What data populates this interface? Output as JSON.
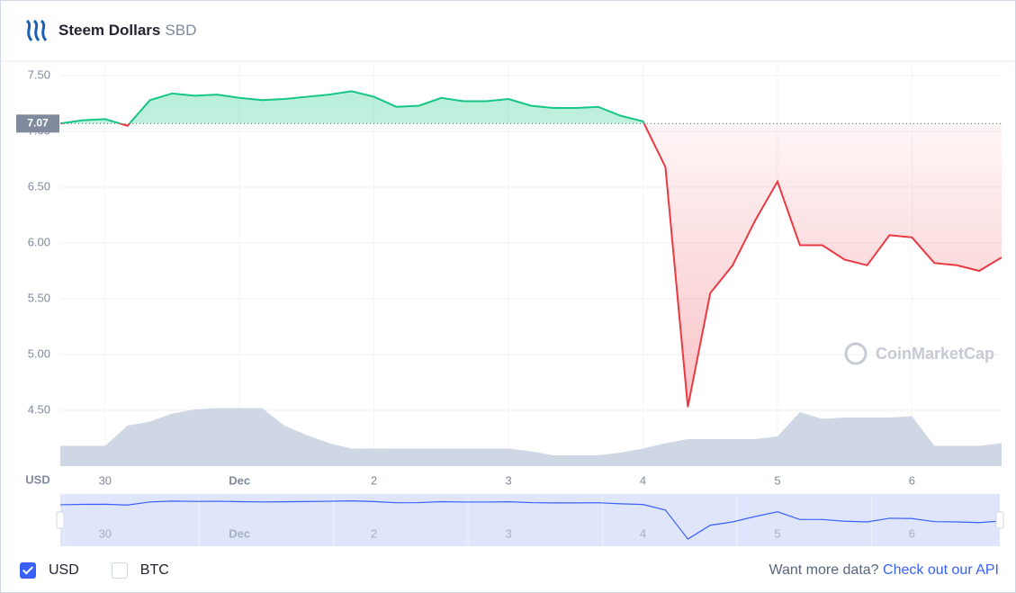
{
  "header": {
    "title": "Steem Dollars",
    "symbol": "SBD"
  },
  "chart_data": {
    "type": "line",
    "categories": [
      null,
      null,
      "30",
      null,
      null,
      null,
      null,
      null,
      "Dec",
      null,
      null,
      null,
      null,
      null,
      "2",
      null,
      null,
      null,
      null,
      null,
      "3",
      null,
      null,
      null,
      null,
      null,
      "4",
      null,
      null,
      null,
      null,
      null,
      "5",
      null,
      null,
      null,
      null,
      null,
      "6",
      null,
      null,
      null,
      null
    ],
    "series": [
      {
        "color": "#16c784",
        "below_color": "#ea3943",
        "values": [
          7.07,
          7.1,
          7.11,
          7.05,
          7.28,
          7.34,
          7.32,
          7.33,
          7.3,
          7.28,
          7.29,
          7.31,
          7.33,
          7.36,
          7.31,
          7.22,
          7.23,
          7.3,
          7.27,
          7.27,
          7.29,
          7.23,
          7.21,
          7.21,
          7.22,
          7.14,
          7.09,
          6.68,
          4.53,
          5.55,
          5.8,
          6.2,
          6.55,
          5.98,
          5.98,
          5.85,
          5.8,
          6.07,
          6.05,
          5.82,
          5.8,
          5.75,
          5.87
        ]
      }
    ],
    "volume": {
      "color": "#cfd6e4",
      "axis": "y2",
      "values": [
        15,
        15,
        15,
        30,
        33,
        39,
        42,
        43,
        43,
        43,
        30,
        23,
        17,
        13,
        13,
        13,
        13,
        13,
        13,
        13,
        13,
        11,
        8,
        8,
        8,
        10,
        13,
        17,
        20,
        20,
        20,
        20,
        22,
        40,
        35,
        36,
        36,
        36,
        37,
        15,
        15,
        15,
        17
      ]
    },
    "reference": {
      "value": 7.07,
      "label": "7.07"
    },
    "ylim": [
      4.0,
      7.6
    ],
    "yticks": [
      {
        "value": 4.5,
        "label": "4.50"
      },
      {
        "value": 5.0,
        "label": "5.00"
      },
      {
        "value": 5.5,
        "label": "5.50"
      },
      {
        "value": 6.0,
        "label": "6.00"
      },
      {
        "value": 6.5,
        "label": "6.50"
      },
      {
        "value": 7.0,
        "label": "7.00"
      },
      {
        "value": 7.5,
        "label": "7.50"
      }
    ],
    "y2lim": [
      0,
      100
    ],
    "y_label": "USD",
    "watermark": "CoinMarketCap",
    "grid": true
  },
  "footer": {
    "options": [
      {
        "label": "USD",
        "checked": true
      },
      {
        "label": "BTC",
        "checked": false
      }
    ],
    "prompt": "Want more data?",
    "link": "Check out our API"
  }
}
